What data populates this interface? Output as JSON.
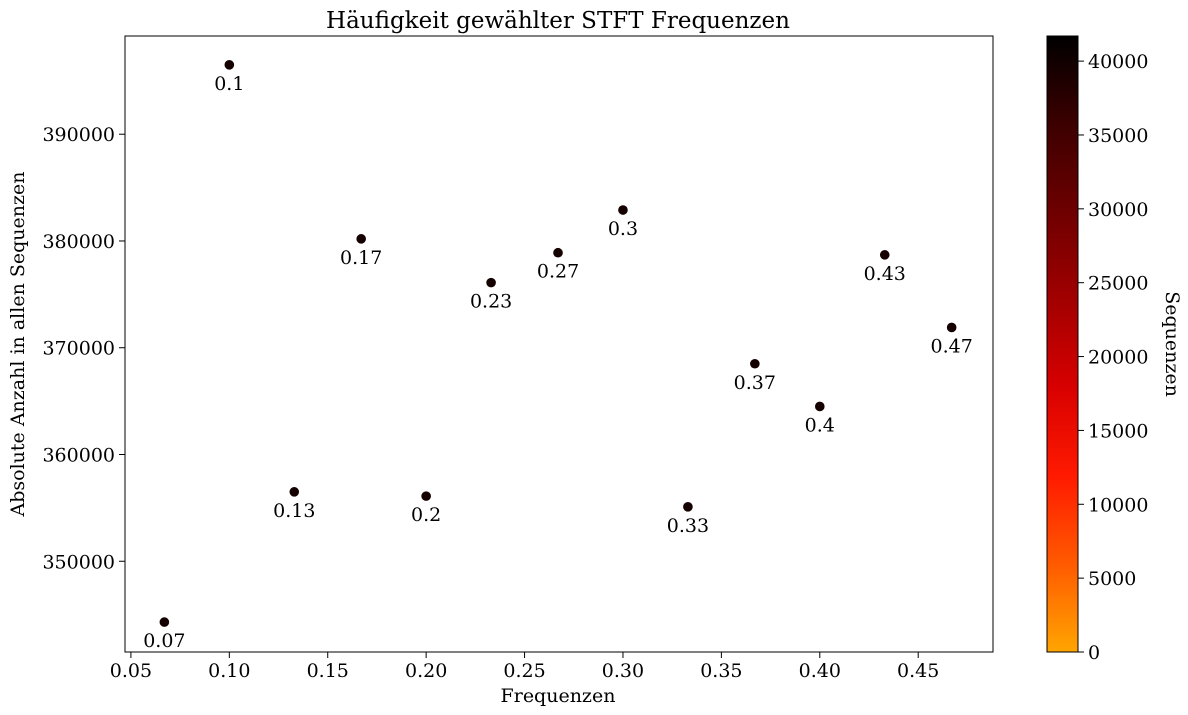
{
  "chart_data": {
    "type": "scatter",
    "title": "Häufigkeit gewählter STFT Frequenzen",
    "xlabel": "Frequenzen",
    "ylabel": "Absolute Anzahl in allen Sequenzen",
    "xlim": [
      0.047,
      0.488
    ],
    "ylim": [
      341500,
      399200
    ],
    "xticks": [
      0.05,
      0.1,
      0.15,
      0.2,
      0.25,
      0.3,
      0.35,
      0.4,
      0.45
    ],
    "xtick_labels": [
      "0.05",
      "0.10",
      "0.15",
      "0.20",
      "0.25",
      "0.30",
      "0.35",
      "0.40",
      "0.45"
    ],
    "yticks": [
      350000,
      360000,
      370000,
      380000,
      390000
    ],
    "ytick_labels": [
      "350000",
      "360000",
      "370000",
      "380000",
      "390000"
    ],
    "grid": false,
    "points": [
      {
        "x": 0.067,
        "y": 344300,
        "label": "0.07"
      },
      {
        "x": 0.1,
        "y": 396500,
        "label": "0.1"
      },
      {
        "x": 0.133,
        "y": 356500,
        "label": "0.13"
      },
      {
        "x": 0.167,
        "y": 380200,
        "label": "0.17"
      },
      {
        "x": 0.2,
        "y": 356100,
        "label": "0.2"
      },
      {
        "x": 0.233,
        "y": 376100,
        "label": "0.23"
      },
      {
        "x": 0.267,
        "y": 378900,
        "label": "0.27"
      },
      {
        "x": 0.3,
        "y": 382900,
        "label": "0.3"
      },
      {
        "x": 0.333,
        "y": 355100,
        "label": "0.33"
      },
      {
        "x": 0.367,
        "y": 368500,
        "label": "0.37"
      },
      {
        "x": 0.4,
        "y": 364500,
        "label": "0.4"
      },
      {
        "x": 0.433,
        "y": 378700,
        "label": "0.43"
      },
      {
        "x": 0.467,
        "y": 371900,
        "label": "0.47"
      }
    ],
    "marker_color": "#150000",
    "colorbar": {
      "label": "Sequenzen",
      "range": [
        0,
        41700
      ],
      "ticks": [
        0,
        5000,
        10000,
        15000,
        20000,
        25000,
        30000,
        35000,
        40000
      ],
      "tick_labels": [
        "0",
        "5000",
        "10000",
        "15000",
        "20000",
        "25000",
        "30000",
        "35000",
        "40000"
      ],
      "colors": [
        "#ffa500",
        "#ff5a00",
        "#ff1a00",
        "#d80000",
        "#a20000",
        "#6e0000",
        "#3c0000",
        "#000000"
      ]
    }
  }
}
